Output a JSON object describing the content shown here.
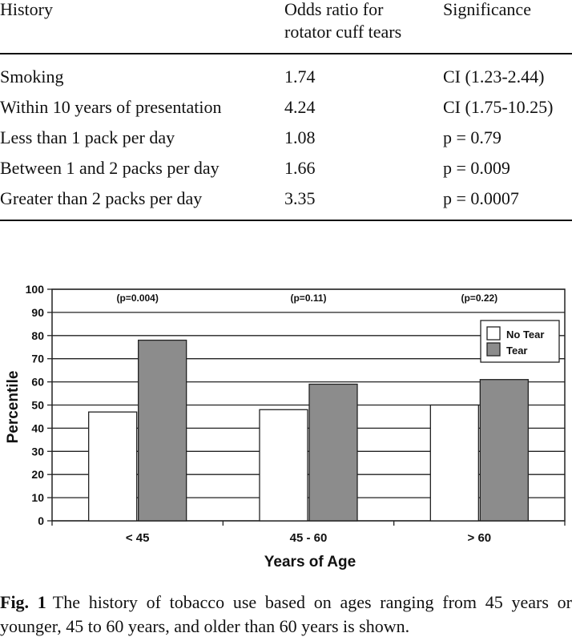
{
  "table": {
    "headers": [
      "History",
      "Odds ratio for",
      "rotator cuff tears",
      "Significance"
    ],
    "rows": [
      [
        "Smoking",
        "1.74",
        "CI (1.23-2.44)"
      ],
      [
        "Within 10 years of presentation",
        "4.24",
        "CI (1.75-10.25)"
      ],
      [
        "Less than 1 pack per day",
        "1.08",
        "p = 0.79"
      ],
      [
        "Between 1 and 2 packs per day",
        "1.66",
        "p = 0.009"
      ],
      [
        "Greater than 2 packs per day",
        "3.35",
        "p = 0.0007"
      ]
    ]
  },
  "chart_data": {
    "type": "bar",
    "categories": [
      "< 45",
      "45 - 60",
      "> 60"
    ],
    "series": [
      {
        "name": "No Tear",
        "values": [
          47,
          48,
          50
        ],
        "color": "#ffffff"
      },
      {
        "name": "Tear",
        "values": [
          78,
          59,
          61
        ],
        "color": "#8c8c8c"
      }
    ],
    "annotations": [
      "(p=0.004)",
      "(p=0.11)",
      "(p=0.22)"
    ],
    "xlabel": "Years of Age",
    "ylabel": "Percentile",
    "ylim": [
      0,
      100
    ],
    "yticks": [
      0,
      10,
      20,
      30,
      40,
      50,
      60,
      70,
      80,
      90,
      100
    ],
    "grid": true,
    "legend": "top-right"
  },
  "caption": {
    "label": "Fig. 1",
    "text": "The history of tobacco use based on ages ranging from 45 years or younger, 45 to 60 years, and older than 60 years is shown."
  }
}
